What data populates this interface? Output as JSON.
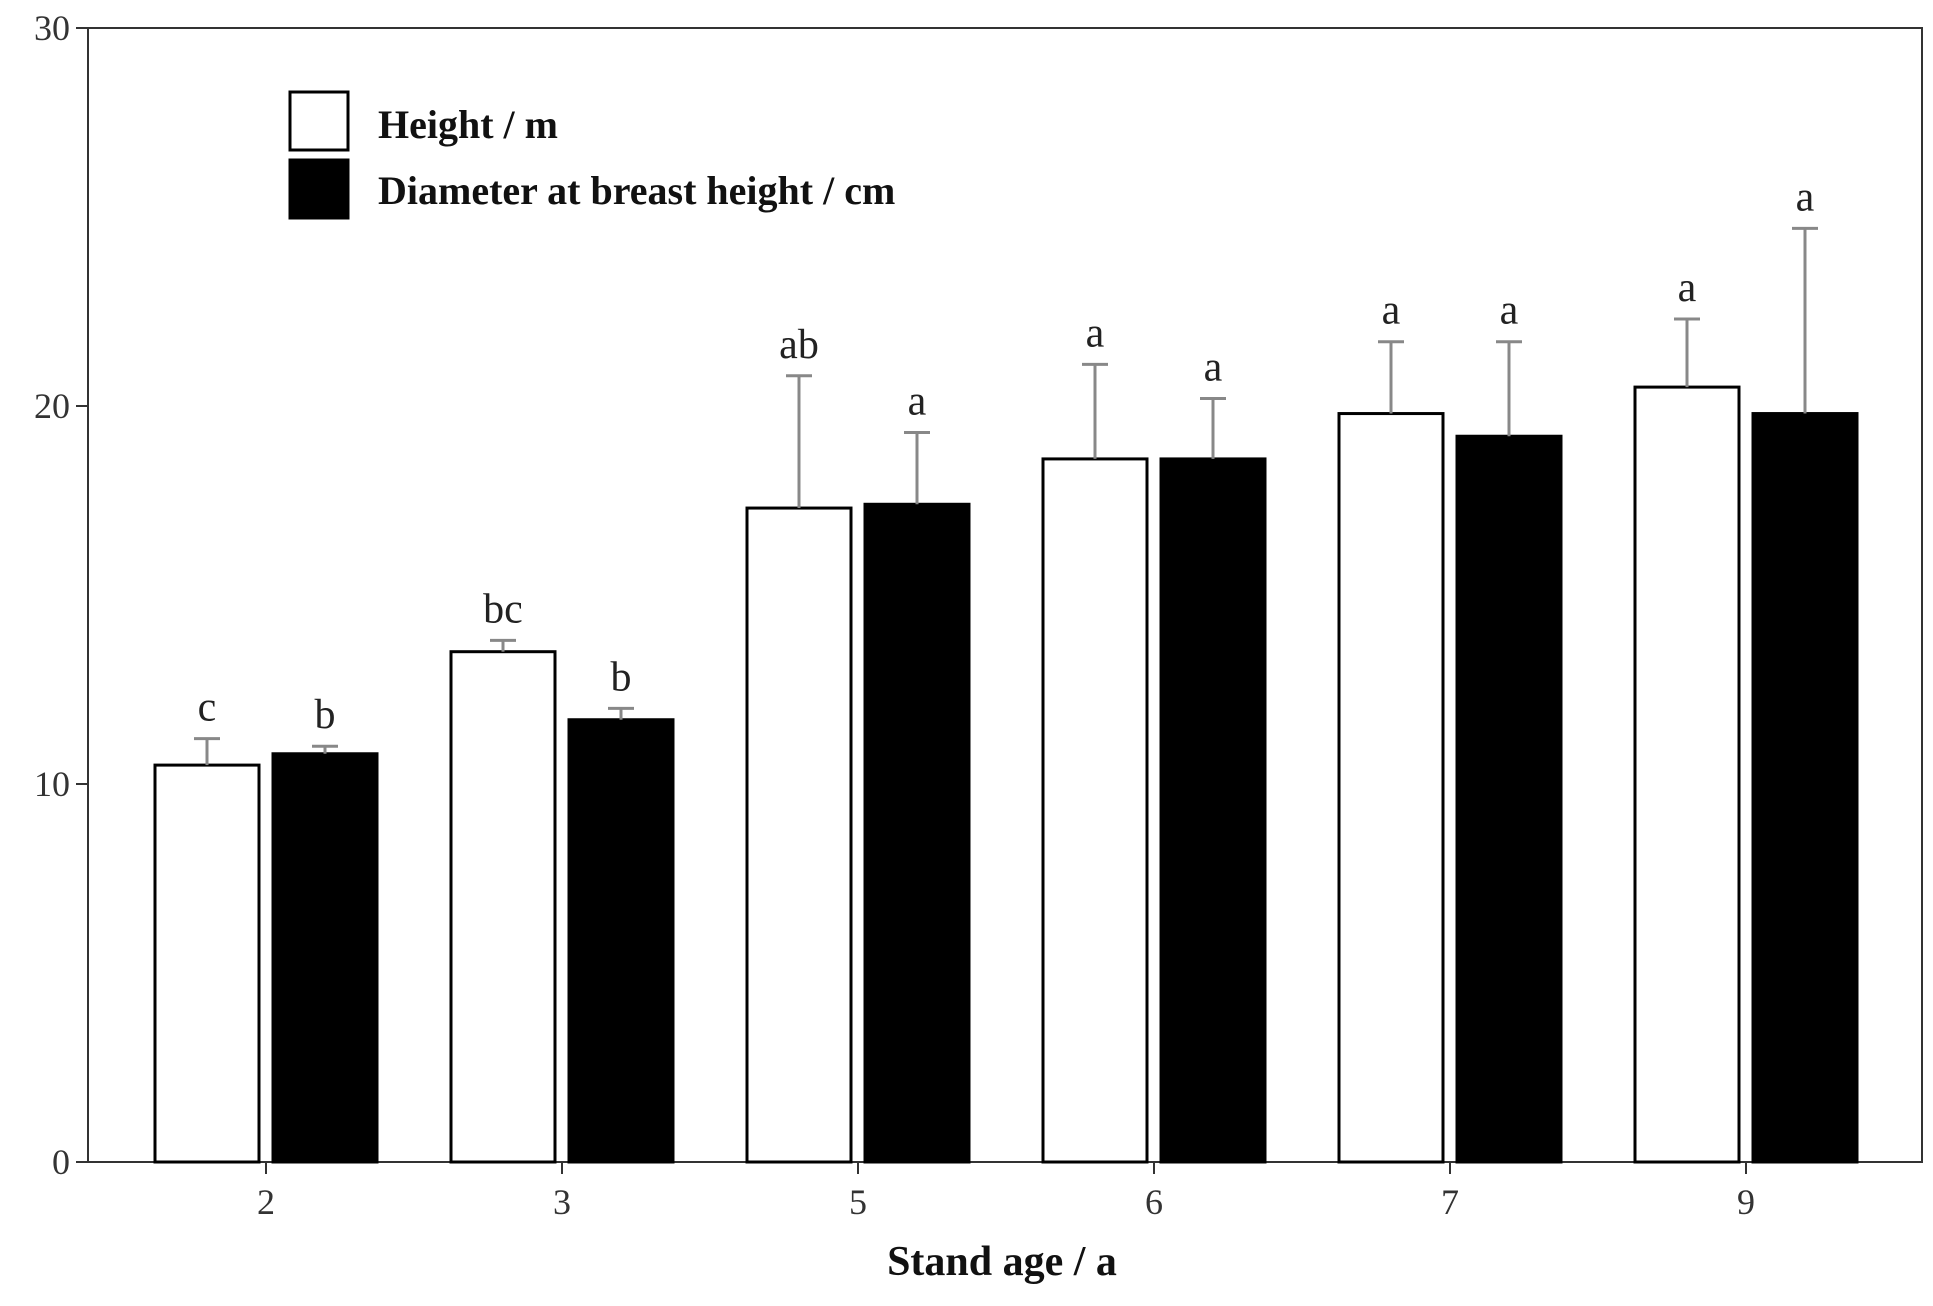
{
  "chart_data": {
    "type": "bar",
    "categories": [
      "2",
      "3",
      "5",
      "6",
      "7",
      "9"
    ],
    "series": [
      {
        "name": "Height / m",
        "fill": "#ffffff",
        "values": [
          10.5,
          13.5,
          17.3,
          18.6,
          19.8,
          20.5
        ],
        "errors": [
          0.7,
          0.3,
          3.5,
          2.5,
          1.9,
          1.8
        ],
        "labels": [
          "c",
          "bc",
          "ab",
          "a",
          "a",
          "a"
        ]
      },
      {
        "name": "Diameter at breast height / cm",
        "fill": "#000000",
        "values": [
          10.8,
          11.7,
          17.4,
          18.6,
          19.2,
          19.8
        ],
        "errors": [
          0.2,
          0.3,
          1.9,
          1.6,
          2.5,
          4.9
        ],
        "labels": [
          "b",
          "b",
          "a",
          "a",
          "a",
          "a"
        ]
      }
    ],
    "title": "",
    "xlabel": "Stand age / a",
    "ylabel": "",
    "ylim": [
      0,
      30
    ],
    "yticks": [
      0,
      10,
      20,
      30
    ],
    "legend_position": "top-left",
    "grid": false,
    "error_bar_color": "#888888"
  }
}
